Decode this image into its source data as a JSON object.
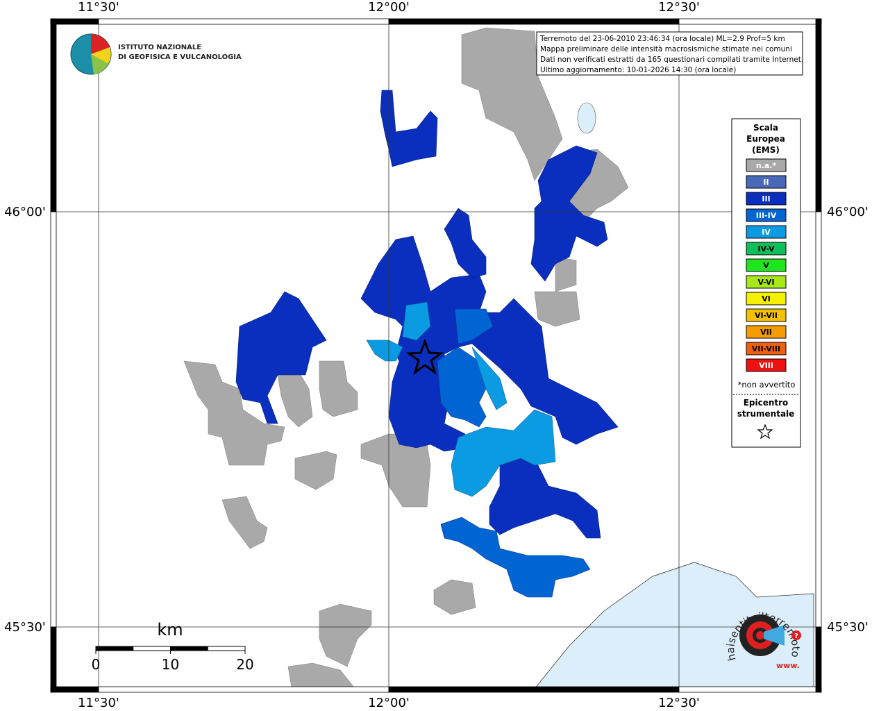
{
  "header": {
    "lines": [
      "Terremoto del 23-06-2010 23:46:34 (ora locale) ML=2.9 Prof=5 km",
      "Mappa preliminare delle intensità macrosismiche stimate nei comuni",
      "Dati non verificati estratti da 165 questionari compilati tramite Internet.",
      "Ultimo aggiornamento: 10-01-2026 14:30 (ora locale)"
    ]
  },
  "institute": {
    "lines": [
      "ISTITUTO NAZIONALE",
      "DI GEOFISICA E VULCANOLOGIA"
    ]
  },
  "graticule": {
    "longitude": [
      {
        "value": 11.5,
        "label": "11°30'"
      },
      {
        "value": 12,
        "label": "12°00'"
      },
      {
        "value": 12.5,
        "label": "12°30'"
      }
    ],
    "latitude": [
      {
        "value": 46,
        "label": "46°00'"
      },
      {
        "value": 45.5,
        "label": "45°30'"
      }
    ]
  },
  "legend": {
    "title": [
      "Scala",
      "Europea",
      "(EMS)"
    ],
    "classes": [
      {
        "label": "n.a.*",
        "color": "#a9a9a9",
        "text_color": "#ffffff"
      },
      {
        "label": "II",
        "color": "#4a68b8",
        "text_color": "#ffffff"
      },
      {
        "label": "III",
        "color": "#0a2fbf",
        "text_color": "#ffffff"
      },
      {
        "label": "III-IV",
        "color": "#0064d2",
        "text_color": "#ffffff"
      },
      {
        "label": "IV",
        "color": "#0a9be2",
        "text_color": "#ffffff"
      },
      {
        "label": "IV-V",
        "color": "#0fbf5a",
        "text_color": "#000000"
      },
      {
        "label": "V",
        "color": "#1fe51f",
        "text_color": "#000000"
      },
      {
        "label": "V-VI",
        "color": "#a8e81a",
        "text_color": "#000000"
      },
      {
        "label": "VI",
        "color": "#f5f000",
        "text_color": "#000000"
      },
      {
        "label": "VI-VII",
        "color": "#f5c000",
        "text_color": "#000000"
      },
      {
        "label": "VII",
        "color": "#f59c00",
        "text_color": "#000000"
      },
      {
        "label": "VII-VIII",
        "color": "#f06010",
        "text_color": "#000000"
      },
      {
        "label": "VIII",
        "color": "#f01010",
        "text_color": "#ffffff"
      }
    ],
    "note": "*non avvertito",
    "epicenter": [
      "Epicentro",
      "strumentale"
    ]
  },
  "scale_bar": {
    "unit": "km",
    "ticks": [
      0,
      10,
      20
    ]
  },
  "badge": {
    "text": "haisentitoilterremoto.it",
    "prefix": "www.",
    "mark": "?"
  }
}
